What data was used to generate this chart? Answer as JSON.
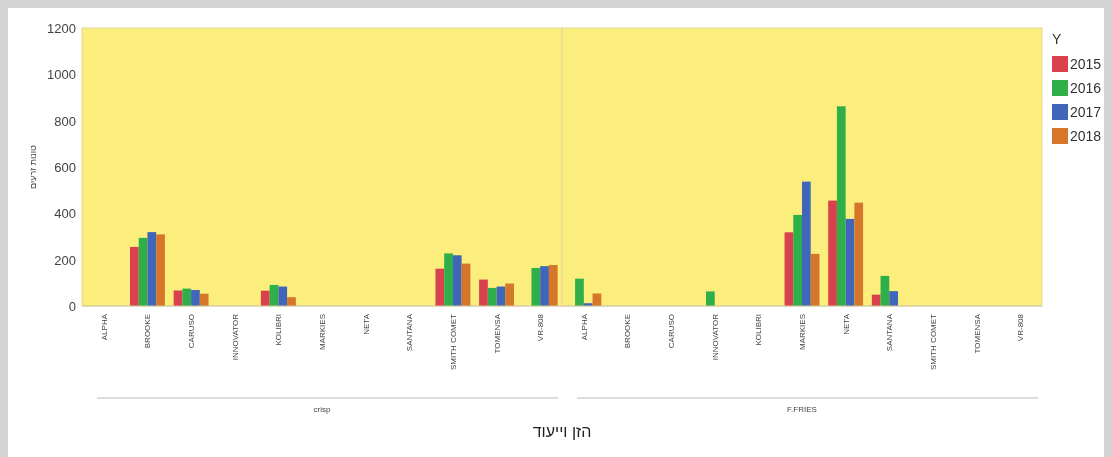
{
  "chart_data": [
    {
      "type": "bar",
      "ylabel": "טונות זרעים",
      "xlabel": "crisp",
      "annotations": [
        "הזן וייעוד"
      ],
      "categories": [
        "ALPHA",
        "BROOKE",
        "CARUSO",
        "INNOVATOR",
        "KOLIBRI",
        "MARKIES",
        "NETA",
        "SANTANA",
        "SMITH COMET",
        "TOMENSA",
        "VR-808"
      ],
      "ylim": [
        0,
        1200
      ],
      "yticks": [
        0,
        200,
        400,
        600,
        800,
        1000,
        1200
      ],
      "series": [
        {
          "color": "#d9414f",
          "values": [
            null,
            255,
            67,
            null,
            66,
            null,
            null,
            null,
            161,
            114,
            null
          ]
        },
        {
          "color": "#2eaf4a",
          "values": [
            null,
            294,
            75,
            null,
            91,
            null,
            null,
            null,
            227,
            78,
            164
          ]
        },
        {
          "color": "#3f66b8",
          "values": [
            null,
            319,
            69,
            null,
            84,
            null,
            null,
            null,
            219,
            84,
            172
          ]
        },
        {
          "color": "#d6762a",
          "values": [
            null,
            309,
            53,
            null,
            38,
            null,
            null,
            null,
            183,
            97,
            177
          ]
        }
      ]
    },
    {
      "type": "bar",
      "xlabel": "F.FRIES",
      "legend": "right",
      "legend_title": "Y",
      "tick_labels": "x",
      "categories": [
        "ALPHA",
        "BROOKE",
        "CARUSO",
        "INNOVATOR",
        "KOLIBRI",
        "MARKIES",
        "NETA",
        "SANTANA",
        "SMITH COMET",
        "TOMENSA",
        "VR-808"
      ],
      "ylim": [
        0,
        1200
      ],
      "series": [
        {
          "name": "2015",
          "color": "#d9414f",
          "values": [
            null,
            null,
            null,
            null,
            null,
            318,
            455,
            49,
            null,
            null,
            null
          ]
        },
        {
          "name": "2016",
          "color": "#2eaf4a",
          "values": [
            118,
            null,
            null,
            63,
            null,
            393,
            862,
            130,
            null,
            null,
            null
          ]
        },
        {
          "name": "2017",
          "color": "#3f66b8",
          "values": [
            12,
            null,
            null,
            null,
            null,
            537,
            376,
            64,
            null,
            null,
            null
          ]
        },
        {
          "name": "2018",
          "color": "#d6762a",
          "values": [
            54,
            null,
            null,
            null,
            null,
            225,
            446,
            null,
            null,
            null,
            null
          ]
        }
      ]
    }
  ]
}
